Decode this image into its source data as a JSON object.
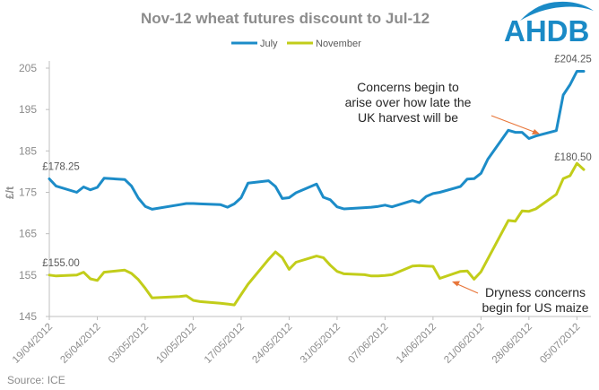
{
  "colors": {
    "july": "#1c8cc8",
    "november": "#c2cd1a",
    "annotation_arrow": "#e8763a",
    "logo": "#1a8ac6",
    "axis": "#bfbfbf",
    "text_muted": "#8c8c8c"
  },
  "logo": {
    "text": "AHDB"
  },
  "source": "Source: ICE",
  "chart_data": {
    "type": "line",
    "title": "Nov-12 wheat futures discount to Jul-12",
    "ylabel": "£/t",
    "ylim": [
      145,
      205
    ],
    "yticks": [
      145,
      155,
      165,
      175,
      185,
      195,
      205
    ],
    "grid": false,
    "legend_position": "top",
    "xticks": [
      "19/04/2012",
      "26/04/2012",
      "03/05/2012",
      "10/05/2012",
      "17/05/2012",
      "24/05/2012",
      "31/05/2012",
      "07/06/2012",
      "14/06/2012",
      "21/06/2012",
      "28/06/2012",
      "05/07/2012"
    ],
    "x": [
      "19/04/2012",
      "20/04/2012",
      "23/04/2012",
      "24/04/2012",
      "25/04/2012",
      "26/04/2012",
      "27/04/2012",
      "30/04/2012",
      "01/05/2012",
      "02/05/2012",
      "03/05/2012",
      "04/05/2012",
      "08/05/2012",
      "09/05/2012",
      "10/05/2012",
      "11/05/2012",
      "14/05/2012",
      "15/05/2012",
      "16/05/2012",
      "17/05/2012",
      "18/05/2012",
      "21/05/2012",
      "22/05/2012",
      "23/05/2012",
      "24/05/2012",
      "25/05/2012",
      "28/05/2012",
      "29/05/2012",
      "30/05/2012",
      "31/05/2012",
      "01/06/2012",
      "04/06/2012",
      "05/06/2012",
      "06/06/2012",
      "07/06/2012",
      "08/06/2012",
      "11/06/2012",
      "12/06/2012",
      "13/06/2012",
      "14/06/2012",
      "15/06/2012",
      "18/06/2012",
      "19/06/2012",
      "20/06/2012",
      "21/06/2012",
      "22/06/2012",
      "25/06/2012",
      "26/06/2012",
      "27/06/2012",
      "28/06/2012",
      "29/06/2012",
      "02/07/2012",
      "03/07/2012",
      "04/07/2012",
      "05/07/2012",
      "06/07/2012"
    ],
    "series": [
      {
        "name": "July",
        "values": [
          178.25,
          176.5,
          175.0,
          176.3,
          175.6,
          176.2,
          178.4,
          178.1,
          176.5,
          173.6,
          171.6,
          170.9,
          172.0,
          172.3,
          172.3,
          172.2,
          172.0,
          171.4,
          172.2,
          173.7,
          177.2,
          177.8,
          176.4,
          173.5,
          173.7,
          174.9,
          177.0,
          173.8,
          173.2,
          171.5,
          171.0,
          171.3,
          171.4,
          171.6,
          171.9,
          171.5,
          173.0,
          172.5,
          174.0,
          174.7,
          175.0,
          176.4,
          178.2,
          178.3,
          179.6,
          183.0,
          190.0,
          189.5,
          189.5,
          188.0,
          188.6,
          189.9,
          198.5,
          201.0,
          204.25,
          204.25
        ]
      },
      {
        "name": "November",
        "values": [
          155.0,
          154.8,
          155.0,
          155.7,
          154.1,
          153.7,
          155.7,
          156.2,
          155.4,
          153.9,
          151.8,
          149.5,
          149.8,
          150.0,
          148.9,
          148.6,
          148.2,
          148.0,
          147.8,
          150.3,
          152.8,
          158.8,
          160.6,
          159.2,
          156.4,
          158.1,
          159.6,
          159.2,
          157.4,
          155.9,
          155.3,
          155.1,
          154.8,
          154.8,
          154.9,
          155.1,
          157.2,
          157.3,
          157.2,
          157.1,
          154.2,
          155.9,
          156.0,
          154.0,
          155.8,
          158.9,
          168.2,
          168.0,
          170.5,
          170.4,
          171.0,
          174.5,
          178.3,
          179.0,
          182.0,
          180.5
        ]
      }
    ],
    "data_labels": [
      {
        "series": "July",
        "text": "£178.25"
      },
      {
        "series": "November",
        "text": "£155.00"
      },
      {
        "series": "July",
        "text": "£204.25"
      },
      {
        "series": "November",
        "text": "£180.50"
      }
    ],
    "annotations": [
      {
        "lines": [
          "Concerns begin to",
          "arise over how late the",
          "UK harvest will be"
        ]
      },
      {
        "lines": [
          "Dryness concerns",
          "begin for US maize"
        ]
      }
    ]
  }
}
